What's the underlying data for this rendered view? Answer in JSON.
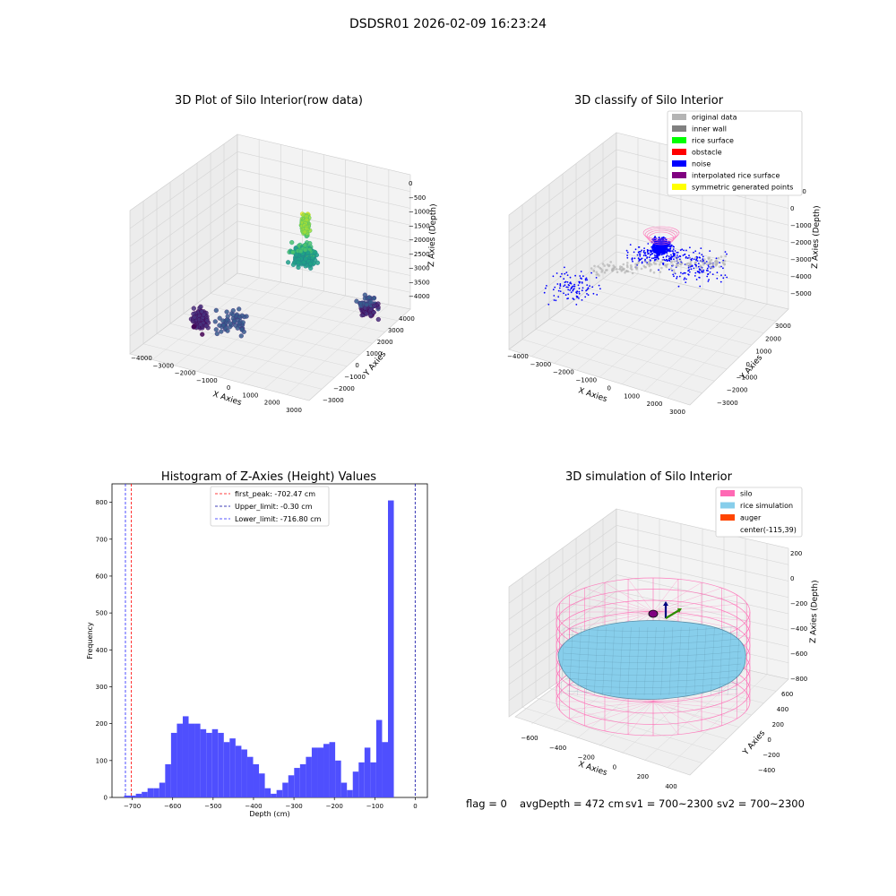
{
  "figure": {
    "suptitle": "DSDSR01 2026-02-09 16:23:24",
    "footer": {
      "flag": "flag = 0",
      "avg_depth": "avgDepth = 472 cm",
      "sv1": "sv1 = 700~2300",
      "sv2": "sv2 = 700~2300"
    }
  },
  "colors": {
    "hist_bar": "#4f4ffe",
    "first_peak": "#ff0000",
    "upper_limit": "#0000a0",
    "lower_limit": "#2020ff",
    "original_data": "#b4b4b4",
    "inner_wall": "#808080",
    "rice_surface": "#00ff00",
    "obstacle": "#ff0000",
    "noise": "#0000ff",
    "interpolated": "#800080",
    "symmetric": "#ffff00",
    "silo": "#ff69b4",
    "rice_simulation": "#87ceeb",
    "auger": "#ff4500"
  },
  "chart_data": [
    {
      "type": "scatter",
      "title": "3D Plot of Silo Interior(row data)",
      "xlabel": "X Axies",
      "ylabel": "Y Axies",
      "zlabel": "Z Axies (Depth)",
      "x_ticks": [
        "−4000",
        "−3000",
        "−2000",
        "−1000",
        "0",
        "1000",
        "2000",
        "3000"
      ],
      "y_ticks": [
        "4000",
        "3000",
        "2000",
        "1000",
        "0",
        "−1000",
        "−2000",
        "−3000"
      ],
      "z_ticks": [
        "0",
        "−500",
        "−1000",
        "−1500",
        "−2000",
        "−2500",
        "−3000",
        "−3500",
        "−4000"
      ],
      "colormap": "viridis",
      "clusters": [
        {
          "x": 500,
          "y": -200,
          "z": -1600,
          "spread": 700,
          "count": 220
        },
        {
          "x": 700,
          "y": 0,
          "z": -600,
          "spread": 250,
          "count": 120
        },
        {
          "x": -3300,
          "y": 1500,
          "z": -3700,
          "spread": 500,
          "count": 90
        },
        {
          "x": 2600,
          "y": -1800,
          "z": -3300,
          "spread": 600,
          "count": 110
        },
        {
          "x": -1200,
          "y": 2800,
          "z": -3000,
          "spread": 900,
          "count": 60
        }
      ]
    },
    {
      "type": "scatter",
      "title": "3D classify of Silo Interior",
      "xlabel": "X Axies",
      "ylabel": "Y Axies",
      "zlabel": "Z Axies (Depth)",
      "x_ticks": [
        "−4000",
        "−3000",
        "−2000",
        "−1000",
        "0",
        "1000",
        "2000",
        "3000"
      ],
      "y_ticks": [
        "3000",
        "2000",
        "1000",
        "0",
        "−1000",
        "−2000",
        "−3000"
      ],
      "z_ticks": [
        "1000",
        "0",
        "−1000",
        "−2000",
        "−3000",
        "−4000",
        "−5000"
      ],
      "legend": [
        {
          "label": "original data",
          "color": "#b4b4b4"
        },
        {
          "label": "inner wall",
          "color": "#808080"
        },
        {
          "label": "rice surface",
          "color": "#00ff00"
        },
        {
          "label": "obstacle",
          "color": "#ff0000"
        },
        {
          "label": "noise",
          "color": "#0000ff"
        },
        {
          "label": "interpolated rice surface",
          "color": "#800080"
        },
        {
          "label": "symmetric generated points",
          "color": "#ffff00"
        }
      ]
    },
    {
      "type": "bar",
      "title": "Histogram of Z-Axies (Height) Values",
      "xlabel": "Depth (cm)",
      "ylabel": "Frequency",
      "xlim": [
        -750,
        30
      ],
      "ylim": [
        0,
        850
      ],
      "x_ticks": [
        -700,
        -600,
        -500,
        -400,
        -300,
        -200,
        -100,
        0
      ],
      "y_ticks": [
        0,
        100,
        200,
        300,
        400,
        500,
        600,
        700,
        800
      ],
      "bin_start": -720,
      "bin_width": 14.5,
      "values": [
        5,
        5,
        10,
        15,
        25,
        25,
        40,
        90,
        175,
        200,
        220,
        200,
        200,
        185,
        175,
        185,
        175,
        150,
        160,
        140,
        130,
        110,
        90,
        65,
        25,
        10,
        20,
        40,
        60,
        80,
        90,
        110,
        135,
        135,
        145,
        150,
        100,
        40,
        20,
        70,
        95,
        135,
        95,
        210,
        150,
        805
      ],
      "vlines": [
        {
          "x": -702.47,
          "label": "first_peak: -702.47 cm",
          "color": "#ff0000"
        },
        {
          "x": -0.3,
          "label": "Upper_limit: -0.30 cm",
          "color": "#0000a0"
        },
        {
          "x": -716.8,
          "label": "Lower_limit: -716.80 cm",
          "color": "#2020ff"
        }
      ]
    },
    {
      "type": "scatter",
      "title": "3D simulation of Silo Interior",
      "xlabel": "X Axies",
      "ylabel": "Y Axies",
      "zlabel": "Z Axies (Depth)",
      "x_ticks": [
        "−600",
        "−400",
        "−200",
        "0",
        "200",
        "400"
      ],
      "y_ticks": [
        "600",
        "400",
        "200",
        "0",
        "−200",
        "−400"
      ],
      "z_ticks": [
        "200",
        "0",
        "−200",
        "−400",
        "−600",
        "−800"
      ],
      "legend": [
        {
          "label": "silo",
          "color": "#ff69b4"
        },
        {
          "label": "rice simulation",
          "color": "#87ceeb"
        },
        {
          "label": "auger",
          "color": "#ff4500"
        },
        {
          "label": "center(-115,39)",
          "color": ""
        }
      ]
    }
  ]
}
